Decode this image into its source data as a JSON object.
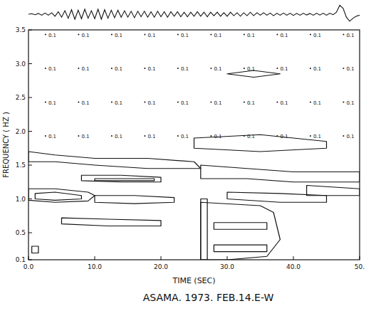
{
  "chart_data": {
    "type": "contour",
    "title": "ASAMA. 1973. FEB.14.E-W",
    "x_label": "TIME (SEC)",
    "y_label": "FREQUENCY ( HZ )",
    "xlim": [
      0,
      50
    ],
    "ylim": [
      0.1,
      3.5
    ],
    "xticks": [
      {
        "value": 0,
        "label": "0.0"
      },
      {
        "value": 10,
        "label": "10.0"
      },
      {
        "value": 20,
        "label": "20.0"
      },
      {
        "value": 30,
        "label": "30.0"
      },
      {
        "value": 40,
        "label": "40.0"
      },
      {
        "value": 50,
        "label": "50."
      }
    ],
    "yticks": [
      {
        "value": 0.1,
        "label": "0.1"
      },
      {
        "value": 0.5,
        "label": "0.5"
      },
      {
        "value": 1,
        "label": "1.0"
      },
      {
        "value": 1.5,
        "label": "1.5"
      },
      {
        "value": 2,
        "label": "2.0"
      },
      {
        "value": 2.5,
        "label": "2.5"
      },
      {
        "value": 3,
        "label": "3.0"
      },
      {
        "value": 3.5,
        "label": "3.5"
      }
    ],
    "grid": false,
    "color": "#111111",
    "trace": {
      "ylim": [
        -1,
        1
      ],
      "x": [
        0,
        0.5,
        1,
        1.5,
        2,
        2.5,
        3,
        3.5,
        4,
        4.5,
        5,
        5.5,
        6,
        6.5,
        7,
        7.5,
        8,
        8.5,
        9,
        9.5,
        10,
        10.5,
        11,
        11.5,
        12,
        12.5,
        13,
        13.5,
        14,
        14.5,
        15,
        15.5,
        16,
        16.5,
        17,
        17.5,
        18,
        18.5,
        19,
        19.5,
        20,
        20.5,
        21,
        21.5,
        22,
        22.5,
        23,
        23.5,
        24,
        24.5,
        25,
        25.5,
        26,
        26.5,
        27,
        27.5,
        28,
        28.5,
        29,
        29.5,
        30,
        30.5,
        31,
        31.5,
        32,
        32.5,
        33,
        33.5,
        34,
        34.5,
        35,
        35.5,
        36,
        36.5,
        37,
        37.5,
        38,
        38.5,
        39,
        39.5,
        40,
        40.5,
        41,
        41.5,
        42,
        42.5,
        43,
        43.5,
        44,
        44.5,
        45,
        45.5,
        46,
        46.5,
        47,
        47.5,
        48,
        48.5,
        49,
        49.5,
        50
      ],
      "values": [
        0,
        0.05,
        -0.05,
        0.08,
        -0.1,
        0.12,
        -0.1,
        0.15,
        -0.2,
        0.25,
        -0.3,
        0.35,
        -0.4,
        0.45,
        -0.5,
        0.4,
        -0.45,
        0.5,
        -0.4,
        0.35,
        -0.45,
        0.5,
        -0.5,
        0.45,
        -0.4,
        0.4,
        -0.35,
        0.4,
        -0.3,
        0.35,
        -0.3,
        0.3,
        -0.35,
        0.3,
        -0.25,
        0.3,
        -0.3,
        0.25,
        -0.3,
        0.3,
        -0.25,
        0.25,
        -0.3,
        0.25,
        -0.2,
        0.25,
        -0.25,
        0.2,
        -0.25,
        0.2,
        -0.2,
        0.25,
        -0.2,
        0.2,
        -0.25,
        0.2,
        -0.15,
        0.2,
        -0.2,
        0.15,
        -0.2,
        0.2,
        -0.15,
        0.15,
        -0.2,
        0.15,
        -0.15,
        0.2,
        -0.15,
        0.15,
        -0.1,
        0.15,
        -0.1,
        0.12,
        -0.15,
        0.1,
        -0.1,
        0.12,
        -0.1,
        0.1,
        -0.12,
        0.08,
        -0.1,
        0.1,
        -0.08,
        0.08,
        -0.1,
        0.1,
        -0.08,
        0.1,
        -0.1,
        0.1,
        -0.05,
        0.2,
        0.9,
        0.6,
        -0.3,
        -0.7,
        -0.4,
        -0.2,
        -0.1
      ]
    },
    "contours": [
      {
        "x": [
          0,
          4,
          10,
          18,
          25,
          26,
          18,
          10,
          4,
          0
        ],
        "y": [
          1.7,
          1.65,
          1.6,
          1.6,
          1.55,
          1.45,
          1.45,
          1.5,
          1.55,
          1.55
        ]
      },
      {
        "x": [
          8,
          14,
          20,
          20,
          14,
          8
        ],
        "y": [
          1.35,
          1.35,
          1.32,
          1.25,
          1.25,
          1.27
        ]
      },
      {
        "x": [
          10,
          19,
          19,
          10
        ],
        "y": [
          1.3,
          1.3,
          1.27,
          1.27
        ]
      },
      {
        "x": [
          0,
          4,
          9,
          10,
          9,
          4,
          0
        ],
        "y": [
          1.15,
          1.15,
          1.1,
          1.05,
          0.97,
          0.95,
          0.98
        ]
      },
      {
        "x": [
          1,
          4,
          8,
          8,
          4,
          1
        ],
        "y": [
          1.08,
          1.1,
          1.05,
          1.0,
          0.98,
          1.0
        ]
      },
      {
        "x": [
          10,
          16,
          22,
          22,
          16,
          10
        ],
        "y": [
          1.05,
          1.05,
          1.02,
          0.95,
          0.93,
          0.95
        ]
      },
      {
        "x": [
          5,
          12,
          20,
          20,
          12,
          5
        ],
        "y": [
          0.72,
          0.7,
          0.68,
          0.6,
          0.6,
          0.63
        ]
      },
      {
        "x": [
          26,
          26,
          35,
          37,
          38,
          36,
          30
        ],
        "y": [
          0.1,
          0.95,
          0.9,
          0.8,
          0.4,
          0.15,
          0.1
        ]
      },
      {
        "x": [
          28,
          36,
          36,
          28
        ],
        "y": [
          0.65,
          0.65,
          0.55,
          0.55
        ]
      },
      {
        "x": [
          28,
          36,
          36,
          28
        ],
        "y": [
          0.32,
          0.32,
          0.22,
          0.22
        ]
      },
      {
        "x": [
          26,
          33,
          40,
          50,
          50,
          40,
          33,
          26
        ],
        "y": [
          1.5,
          1.45,
          1.4,
          1.4,
          1.25,
          1.25,
          1.3,
          1.3
        ]
      },
      {
        "x": [
          30,
          38,
          45,
          45,
          38,
          30
        ],
        "y": [
          1.1,
          1.08,
          1.05,
          0.95,
          0.95,
          1.0
        ]
      },
      {
        "x": [
          30,
          34,
          38,
          34
        ],
        "y": [
          2.85,
          2.9,
          2.85,
          2.8
        ]
      },
      {
        "x": [
          25,
          35,
          45,
          45,
          35,
          25
        ],
        "y": [
          1.9,
          1.95,
          1.85,
          1.75,
          1.7,
          1.75
        ]
      },
      {
        "x": [
          42,
          50,
          50,
          42
        ],
        "y": [
          1.2,
          1.15,
          1.05,
          1.05
        ]
      },
      {
        "x": [
          0.5,
          1.5,
          1.5,
          0.5
        ],
        "y": [
          0.3,
          0.3,
          0.2,
          0.2
        ]
      },
      {
        "x": [
          26,
          27,
          27,
          26
        ],
        "y": [
          0.1,
          0.1,
          1.0,
          1.0
        ]
      }
    ],
    "annotations": [
      {
        "text": "0.1",
        "x": 3,
        "y": 3.4
      },
      {
        "text": "0.1",
        "x": 8,
        "y": 3.4
      },
      {
        "text": "0.1",
        "x": 13,
        "y": 3.4
      },
      {
        "text": "0.1",
        "x": 18,
        "y": 3.4
      },
      {
        "text": "0.1",
        "x": 23,
        "y": 3.4
      },
      {
        "text": "0.1",
        "x": 28,
        "y": 3.4
      },
      {
        "text": "0.1",
        "x": 33,
        "y": 3.4
      },
      {
        "text": "0.1",
        "x": 38,
        "y": 3.4
      },
      {
        "text": "0.1",
        "x": 43,
        "y": 3.4
      },
      {
        "text": "0.1",
        "x": 48,
        "y": 3.4
      },
      {
        "text": "0.1",
        "x": 3,
        "y": 2.9
      },
      {
        "text": "0.1",
        "x": 8,
        "y": 2.9
      },
      {
        "text": "0.1",
        "x": 13,
        "y": 2.9
      },
      {
        "text": "0.1",
        "x": 18,
        "y": 2.9
      },
      {
        "text": "0.1",
        "x": 23,
        "y": 2.9
      },
      {
        "text": "0.1",
        "x": 28,
        "y": 2.9
      },
      {
        "text": "0.1",
        "x": 33,
        "y": 2.9
      },
      {
        "text": "0.1",
        "x": 38,
        "y": 2.9
      },
      {
        "text": "0.1",
        "x": 43,
        "y": 2.9
      },
      {
        "text": "0.1",
        "x": 48,
        "y": 2.9
      },
      {
        "text": "0.1",
        "x": 3,
        "y": 2.4
      },
      {
        "text": "0.1",
        "x": 8,
        "y": 2.4
      },
      {
        "text": "0.1",
        "x": 13,
        "y": 2.4
      },
      {
        "text": "0.1",
        "x": 18,
        "y": 2.4
      },
      {
        "text": "0.1",
        "x": 23,
        "y": 2.4
      },
      {
        "text": "0.1",
        "x": 28,
        "y": 2.4
      },
      {
        "text": "0.1",
        "x": 33,
        "y": 2.4
      },
      {
        "text": "0.1",
        "x": 38,
        "y": 2.4
      },
      {
        "text": "0.1",
        "x": 43,
        "y": 2.4
      },
      {
        "text": "0.1",
        "x": 48,
        "y": 2.4
      },
      {
        "text": "0.1",
        "x": 3,
        "y": 1.9
      },
      {
        "text": "0.1",
        "x": 8,
        "y": 1.9
      },
      {
        "text": "0.1",
        "x": 13,
        "y": 1.9
      },
      {
        "text": "0.1",
        "x": 18,
        "y": 1.9
      },
      {
        "text": "0.1",
        "x": 23,
        "y": 1.9
      },
      {
        "text": "0.1",
        "x": 28,
        "y": 1.9
      },
      {
        "text": "0.1",
        "x": 33,
        "y": 1.9
      },
      {
        "text": "0.1",
        "x": 38,
        "y": 1.9
      },
      {
        "text": "0.1",
        "x": 43,
        "y": 1.9
      },
      {
        "text": "0.1",
        "x": 48,
        "y": 1.9
      }
    ]
  }
}
